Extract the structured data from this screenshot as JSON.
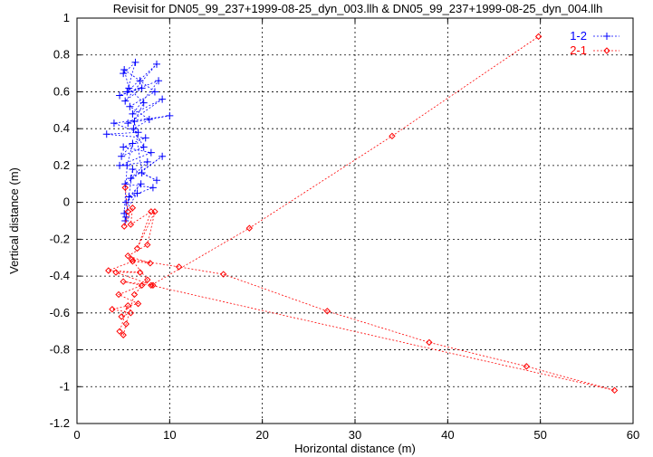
{
  "chart_data": {
    "type": "scatter",
    "title": "Revisit for DN05_99_237+1999-08-25_dyn_003.llh & DN05_99_237+1999-08-25_dyn_004.llh",
    "xlabel": "Horizontal distance (m)",
    "ylabel": "Vertical distance (m)",
    "xlim": [
      0,
      60
    ],
    "ylim": [
      -1.2,
      1
    ],
    "x_ticks": [
      0,
      10,
      20,
      30,
      40,
      50,
      60
    ],
    "y_ticks": [
      -1.2,
      -1,
      -0.8,
      -0.6,
      -0.4,
      -0.2,
      0,
      0.2,
      0.4,
      0.6,
      0.8,
      1
    ],
    "x_tick_labels": [
      "0",
      "10",
      "20",
      "30",
      "40",
      "50",
      "60"
    ],
    "y_tick_labels": [
      "-1.2",
      "-1",
      "-0.8",
      "-0.6",
      "-0.4",
      "-0.2",
      "0",
      "0.2",
      "0.4",
      "0.6",
      "0.8",
      "1"
    ],
    "grid": true,
    "legend_position": "top-right",
    "series": [
      {
        "name": "1-2",
        "color": "#0000ff",
        "marker": "plus",
        "line": "dashed",
        "points": [
          [
            5.0,
            0.7
          ],
          [
            6.3,
            0.76
          ],
          [
            5.4,
            0.6
          ],
          [
            8.6,
            0.75
          ],
          [
            5.2,
            0.55
          ],
          [
            7.0,
            0.62
          ],
          [
            4.6,
            0.58
          ],
          [
            8.8,
            0.66
          ],
          [
            6.0,
            0.48
          ],
          [
            9.2,
            0.56
          ],
          [
            5.5,
            0.43
          ],
          [
            10.0,
            0.47
          ],
          [
            4.0,
            0.43
          ],
          [
            6.6,
            0.38
          ],
          [
            3.2,
            0.37
          ],
          [
            7.4,
            0.35
          ],
          [
            5.0,
            0.3
          ],
          [
            8.0,
            0.27
          ],
          [
            4.6,
            0.2
          ],
          [
            7.6,
            0.22
          ],
          [
            5.8,
            0.13
          ],
          [
            9.2,
            0.25
          ],
          [
            5.2,
            0.1
          ],
          [
            8.2,
            0.08
          ],
          [
            5.6,
            0.03
          ],
          [
            6.9,
            0.1
          ],
          [
            5.3,
            0.0
          ],
          [
            6.5,
            0.05
          ],
          [
            5.1,
            -0.06
          ],
          [
            5.4,
            0.2
          ],
          [
            6.0,
            0.32
          ],
          [
            4.8,
            0.25
          ],
          [
            7.2,
            0.3
          ],
          [
            6.1,
            0.4
          ],
          [
            7.8,
            0.45
          ],
          [
            5.7,
            0.52
          ],
          [
            8.4,
            0.6
          ],
          [
            6.8,
            0.66
          ],
          [
            5.1,
            0.72
          ],
          [
            5.6,
            0.62
          ],
          [
            7.2,
            0.54
          ],
          [
            6.2,
            0.44
          ],
          [
            7.0,
            0.16
          ],
          [
            8.6,
            0.12
          ],
          [
            6.0,
            0.18
          ],
          [
            5.3,
            -0.08
          ],
          [
            5.2,
            -0.1
          ]
        ]
      },
      {
        "name": "2-1",
        "color": "#ff0000",
        "marker": "diamond",
        "line": "dashed",
        "points": [
          [
            5.2,
            0.08
          ],
          [
            5.5,
            -0.05
          ],
          [
            5.1,
            -0.13
          ],
          [
            6.0,
            -0.03
          ],
          [
            5.8,
            -0.12
          ],
          [
            8.0,
            -0.05
          ],
          [
            6.5,
            -0.25
          ],
          [
            8.4,
            -0.05
          ],
          [
            7.6,
            -0.23
          ],
          [
            5.5,
            -0.29
          ],
          [
            7.9,
            -0.33
          ],
          [
            6.0,
            -0.32
          ],
          [
            3.4,
            -0.37
          ],
          [
            6.8,
            -0.38
          ],
          [
            4.2,
            -0.38
          ],
          [
            8.2,
            -0.45
          ],
          [
            5.0,
            -0.43
          ],
          [
            7.0,
            -0.45
          ],
          [
            4.5,
            -0.5
          ],
          [
            6.6,
            -0.55
          ],
          [
            3.8,
            -0.58
          ],
          [
            5.8,
            -0.6
          ],
          [
            4.8,
            -0.62
          ],
          [
            5.5,
            -0.56
          ],
          [
            4.6,
            -0.7
          ],
          [
            5.0,
            -0.72
          ],
          [
            5.3,
            -0.66
          ],
          [
            6.2,
            -0.5
          ],
          [
            7.6,
            -0.42
          ],
          [
            5.9,
            -0.31
          ],
          [
            11.0,
            -0.35
          ],
          [
            15.8,
            -0.39
          ],
          [
            27.0,
            -0.59
          ],
          [
            38.0,
            -0.76
          ],
          [
            48.5,
            -0.89
          ],
          [
            58.0,
            -1.02
          ],
          [
            8.0,
            -0.45
          ],
          [
            18.6,
            -0.14
          ],
          [
            34.0,
            0.36
          ],
          [
            49.8,
            0.9
          ]
        ]
      }
    ]
  }
}
